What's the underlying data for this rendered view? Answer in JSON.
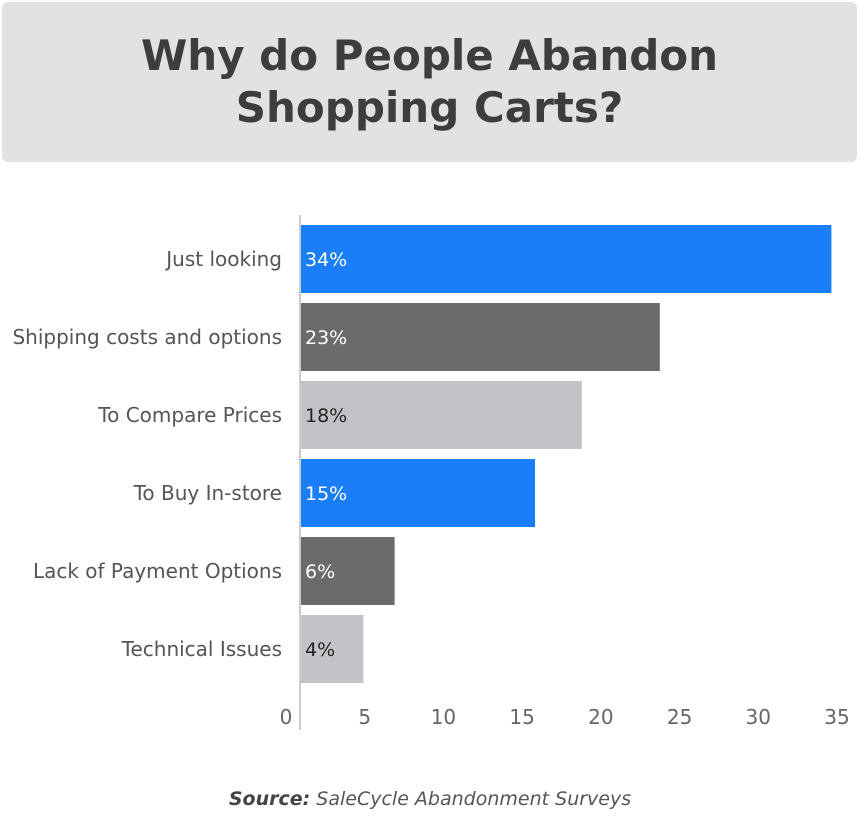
{
  "chart_data": {
    "type": "bar",
    "orientation": "horizontal",
    "title": "Why do People Abandon Shopping Carts?",
    "categories": [
      "Just looking",
      "Shipping costs and options",
      "To Compare Prices",
      "To Buy In-store",
      "Lack of Payment Options",
      "Technical Issues"
    ],
    "values": [
      34,
      23,
      18,
      15,
      6,
      4
    ],
    "data_labels": [
      "34%",
      "23%",
      "18%",
      "15%",
      "6%",
      "4%"
    ],
    "colors": [
      "#1a7ef8",
      "#6b6b6d",
      "#c2c3c6",
      "#1a7ef8",
      "#6b6b6d",
      "#c2c3c6"
    ],
    "label_colors": [
      "#ffffff",
      "#ffffff",
      "#222222",
      "#ffffff",
      "#ffffff",
      "#222222"
    ],
    "xticks": [
      0,
      5,
      10,
      15,
      20,
      25,
      30,
      35
    ],
    "xlim": [
      0,
      35
    ],
    "grid": false,
    "source_label": "Source:",
    "source_text": "SaleCycle Abandonment Surveys"
  }
}
